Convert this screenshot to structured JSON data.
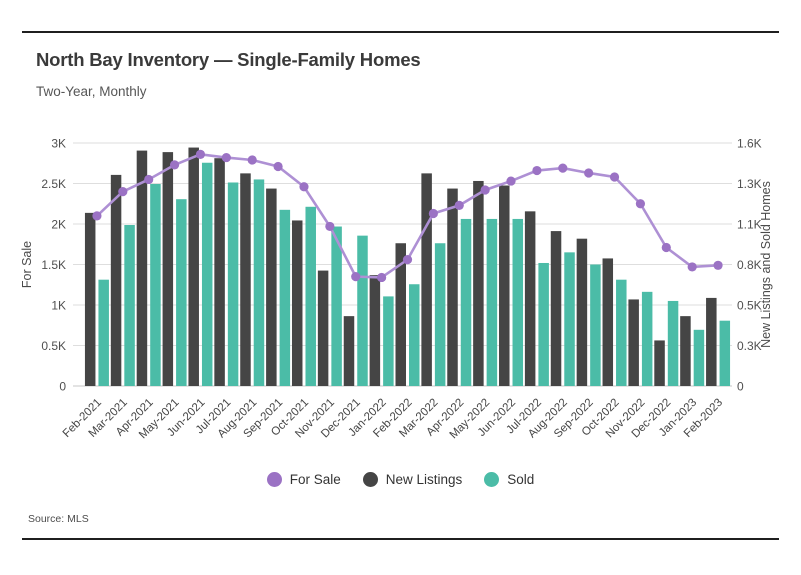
{
  "page": {
    "title": "North Bay Inventory — Single-Family Homes",
    "subtitle": "Two-Year, Monthly",
    "source": "Source: MLS"
  },
  "chart_data": {
    "type": "bar+line",
    "title": "North Bay Inventory — Single-Family Homes",
    "subtitle": "Two-Year, Monthly",
    "grid": true,
    "legend_position": "bottom",
    "categories": [
      "Feb-2021",
      "Mar-2021",
      "Apr-2021",
      "May-2021",
      "Jun-2021",
      "Jul-2021",
      "Aug-2021",
      "Sep-2021",
      "Oct-2021",
      "Nov-2021",
      "Dec-2021",
      "Jan-2022",
      "Feb-2022",
      "Mar-2022",
      "Apr-2022",
      "May-2022",
      "Jun-2022",
      "Jul-2022",
      "Aug-2022",
      "Sep-2022",
      "Oct-2022",
      "Nov-2022",
      "Dec-2022",
      "Jan-2023",
      "Feb-2023"
    ],
    "left_axis": {
      "title": "For Sale",
      "min": 0,
      "max": 3000,
      "tick_labels": [
        "0",
        "0.5K",
        "1K",
        "1.5K",
        "2K",
        "2.5K",
        "3K"
      ]
    },
    "right_axis": {
      "title": "New Listings and Sold Homes",
      "min": 0,
      "max": 1600,
      "tick_labels": [
        "0",
        "0.3K",
        "0.5K",
        "0.8K",
        "1.1K",
        "1.3K",
        "1.6K"
      ]
    },
    "series": [
      {
        "name": "For Sale",
        "type": "line",
        "axis": "left",
        "color": "#AE90D4",
        "point_color": "#9B72C4",
        "values": [
          2100,
          2400,
          2550,
          2730,
          2860,
          2820,
          2790,
          2710,
          2460,
          1970,
          1350,
          1340,
          1560,
          2130,
          2230,
          2420,
          2530,
          2660,
          2690,
          2630,
          2580,
          2250,
          1710,
          1470,
          1490
        ]
      },
      {
        "name": "New Listings",
        "type": "bar",
        "axis": "right",
        "color": "#454545",
        "values": [
          1140,
          1390,
          1550,
          1540,
          1570,
          1500,
          1400,
          1300,
          1090,
          760,
          460,
          730,
          940,
          1400,
          1300,
          1350,
          1320,
          1150,
          1020,
          970,
          840,
          570,
          300,
          460,
          580
        ]
      },
      {
        "name": "Sold",
        "type": "bar",
        "axis": "right",
        "color": "#4BBCA7",
        "values": [
          700,
          1060,
          1330,
          1230,
          1470,
          1340,
          1360,
          1160,
          1180,
          1050,
          990,
          590,
          670,
          940,
          1100,
          1100,
          1100,
          810,
          880,
          800,
          700,
          620,
          560,
          370,
          430
        ]
      }
    ]
  }
}
